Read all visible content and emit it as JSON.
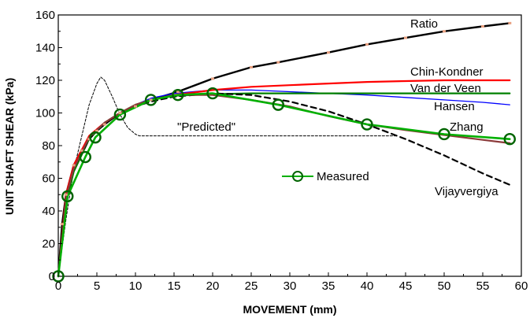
{
  "chart_data": {
    "type": "line",
    "xlabel": "MOVEMENT  (mm)",
    "ylabel": "UNIT SHAFT SHEAR (kPa)",
    "xlim": [
      0,
      60
    ],
    "ylim": [
      0,
      160
    ],
    "xticks": [
      0,
      5,
      10,
      15,
      20,
      25,
      30,
      35,
      40,
      45,
      50,
      55,
      60
    ],
    "yticks": [
      0,
      20,
      40,
      60,
      80,
      100,
      120,
      140,
      160
    ],
    "grid": false,
    "series": [
      {
        "name": "Ratio",
        "color": "#000000",
        "style": "solid",
        "markers": "small-square",
        "marker_color": "#e8a080",
        "x": [
          0,
          0.5,
          1,
          2,
          3,
          4,
          5,
          6,
          8,
          10,
          12,
          15.5,
          20,
          25,
          28.5,
          35,
          40,
          45,
          50,
          55,
          58.5
        ],
        "y": [
          0,
          32,
          50,
          68,
          77,
          84,
          89,
          93,
          100,
          104,
          108,
          113,
          121,
          128,
          131,
          137,
          142,
          146,
          150,
          153,
          155
        ]
      },
      {
        "name": "Chin-Kondner",
        "color": "#ff0000",
        "style": "solid",
        "x": [
          0,
          1,
          2,
          4,
          6,
          8,
          10,
          12,
          15,
          20,
          25,
          30,
          35,
          40,
          45,
          50,
          55,
          58.5
        ],
        "y": [
          0,
          50,
          68,
          86,
          94,
          100,
          104,
          108,
          111,
          114,
          116,
          117,
          118,
          119,
          119.5,
          120,
          120,
          120
        ]
      },
      {
        "name": "Van der Veen",
        "color": "#008000",
        "style": "solid",
        "x": [
          0,
          1,
          2,
          4,
          6,
          8,
          10,
          12,
          15,
          20,
          25,
          30,
          35,
          40,
          45,
          50,
          55,
          58.5
        ],
        "y": [
          0,
          45,
          64,
          84,
          94,
          100,
          105,
          108,
          110.5,
          111.5,
          112,
          112,
          112,
          112,
          112,
          112,
          112,
          112
        ]
      },
      {
        "name": "Hansen",
        "color": "#0000ff",
        "style": "solid",
        "x": [
          0,
          1,
          2,
          4,
          6,
          8,
          10,
          12,
          15,
          20,
          25,
          30,
          35,
          40,
          45,
          50,
          55,
          58.5
        ],
        "y": [
          0,
          47,
          66,
          85,
          94,
          100,
          105,
          109,
          112,
          114,
          114,
          113,
          112,
          111,
          109.5,
          108,
          106.5,
          105
        ]
      },
      {
        "name": "Zhang",
        "color": "#8b3a3a",
        "style": "solid",
        "x": [
          0,
          1,
          2,
          4,
          6,
          8,
          10,
          12,
          15,
          20,
          25,
          30,
          35,
          40,
          45,
          50,
          55,
          58.5
        ],
        "y": [
          0,
          48,
          66,
          85,
          94,
          100,
          105,
          108,
          111,
          111,
          108,
          104,
          98,
          93,
          89.5,
          86.5,
          83.5,
          81.5
        ]
      },
      {
        "name": "Vijayvergiya",
        "color": "#000000",
        "style": "dashed-heavy",
        "x": [
          0,
          1,
          2,
          4,
          6,
          8,
          10,
          12,
          15,
          20,
          25,
          30,
          35,
          40,
          45,
          50,
          55,
          58.5
        ],
        "y": [
          0,
          48,
          66,
          84,
          94,
          100,
          104,
          107,
          110,
          112,
          111,
          107,
          101,
          93,
          84,
          74,
          63,
          56
        ]
      },
      {
        "name": "\"Predicted\"",
        "color": "#000000",
        "style": "dotted-thin",
        "x": [
          0,
          1,
          2,
          3,
          4,
          5,
          5.5,
          6,
          7,
          8,
          9,
          10,
          10.5,
          11,
          15,
          20,
          25,
          30,
          35,
          40,
          44
        ],
        "y": [
          0,
          35,
          65,
          85,
          105,
          118,
          122,
          120,
          110,
          99,
          91,
          87,
          86,
          86,
          86,
          86,
          86,
          86,
          86,
          86,
          86
        ]
      },
      {
        "name": "Measured",
        "color": "#00b000",
        "style": "solid",
        "markers": "open-circle",
        "marker_color": "#006400",
        "x": [
          0,
          1.2,
          3.5,
          4.8,
          8,
          12,
          15.5,
          20,
          28.5,
          40,
          50,
          58.5
        ],
        "y": [
          0,
          49,
          73,
          85,
          99,
          108,
          111,
          112,
          105,
          93,
          87,
          84
        ]
      }
    ],
    "annotations": [
      {
        "text": "Ratio",
        "series": "Ratio"
      },
      {
        "text": "Chin-Kondner",
        "series": "Chin-Kondner"
      },
      {
        "text": "Van der Veen",
        "series": "Van der Veen"
      },
      {
        "text": "Hansen",
        "series": "Hansen"
      },
      {
        "text": "Zhang",
        "series": "Zhang"
      },
      {
        "text": "\"Predicted\"",
        "series": "\"Predicted\""
      },
      {
        "text": "Vijayvergiya",
        "series": "Vijayvergiya"
      }
    ],
    "legend": {
      "entries": [
        "Measured"
      ],
      "placement": "center"
    }
  }
}
